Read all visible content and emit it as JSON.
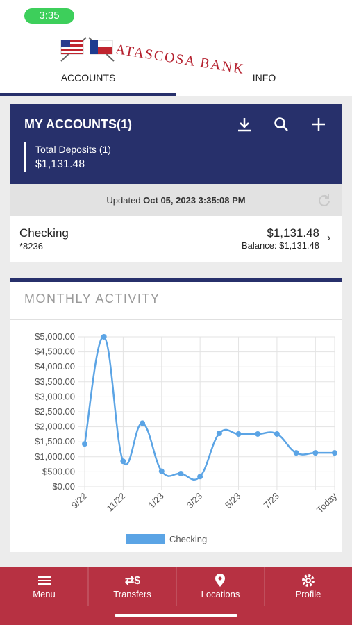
{
  "status_bar": {
    "time": "3:35"
  },
  "header": {
    "bank_name": "ATASCOSA BANK"
  },
  "tabs": [
    "ACCOUNTS",
    "INFO"
  ],
  "accounts_panel": {
    "title": "MY ACCOUNTS(1)",
    "total_label": "Total Deposits (1)",
    "total_value": "$1,131.48",
    "updated_label": "Updated",
    "updated_time": "Oct 05, 2023 3:35:08 PM"
  },
  "accounts": [
    {
      "name": "Checking",
      "number": "*8236",
      "amount": "$1,131.48",
      "balance": "Balance: $1,131.48"
    }
  ],
  "activity": {
    "title": "MONTHLY ACTIVITY"
  },
  "chart_data": {
    "type": "line",
    "categories": [
      "9/22",
      null,
      "11/22",
      null,
      "1/23",
      null,
      "3/23",
      null,
      "5/23",
      null,
      "7/23",
      null,
      null,
      "Today"
    ],
    "series": [
      {
        "name": "Checking",
        "color": "#5ba4e5",
        "values": [
          1430,
          5000,
          850,
          2120,
          520,
          440,
          340,
          1780,
          1760,
          1760,
          1760,
          1130,
          1130,
          1130
        ]
      }
    ],
    "ylim": [
      0,
      5000
    ],
    "yticks": [
      {
        "value": 0,
        "label": "$0.00"
      },
      {
        "value": 500,
        "label": "$500.00"
      },
      {
        "value": 1000,
        "label": "$1,000.00"
      },
      {
        "value": 1500,
        "label": "$1,500.00"
      },
      {
        "value": 2000,
        "label": "$2,000.00"
      },
      {
        "value": 2500,
        "label": "$2,500.00"
      },
      {
        "value": 3000,
        "label": "$3,000.00"
      },
      {
        "value": 3500,
        "label": "$3,500.00"
      },
      {
        "value": 4000,
        "label": "$4,000.00"
      },
      {
        "value": 4500,
        "label": "$4,500.00"
      },
      {
        "value": 5000,
        "label": "$5,000.00"
      }
    ],
    "grid": true,
    "legend": "bottom"
  },
  "nav": [
    "Menu",
    "Transfers",
    "Locations",
    "Profile"
  ]
}
